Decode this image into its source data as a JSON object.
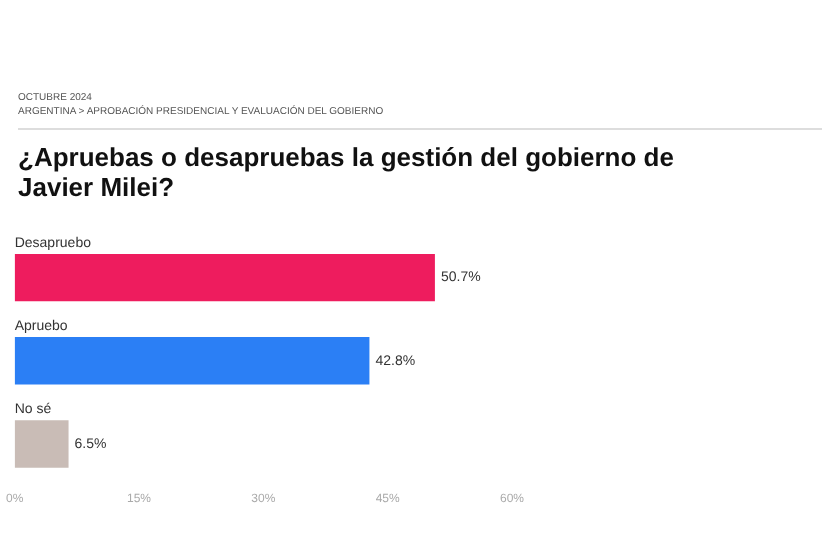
{
  "chart_data": {
    "type": "bar",
    "orientation": "horizontal",
    "title": "¿Apruebas o desapruebas la gestión del gobierno de Javier Milei?",
    "subtitle": "ARGENTINA > APROBACIÓN PRESIDENCIAL Y EVALUACIÓN DEL GOBIERNO",
    "annotations": [
      "OCTUBRE 2024"
    ],
    "categories": [
      "Desapruebo",
      "Apruebo",
      "No sé"
    ],
    "values": [
      50.7,
      42.8,
      6.5
    ],
    "colors": [
      "#ee1c5e",
      "#2b7ff5",
      "#c9bcb6"
    ],
    "value_labels": [
      "50.7%",
      "42.8%",
      "6.5%"
    ],
    "xlim": [
      0,
      60
    ],
    "xticks": [
      {
        "value": 0,
        "label": "0%"
      },
      {
        "value": 15,
        "label": "15%"
      },
      {
        "value": 30,
        "label": "30%"
      },
      {
        "value": 45,
        "label": "45%"
      },
      {
        "value": 60,
        "label": "60%"
      }
    ],
    "grid": false,
    "legend": false
  }
}
